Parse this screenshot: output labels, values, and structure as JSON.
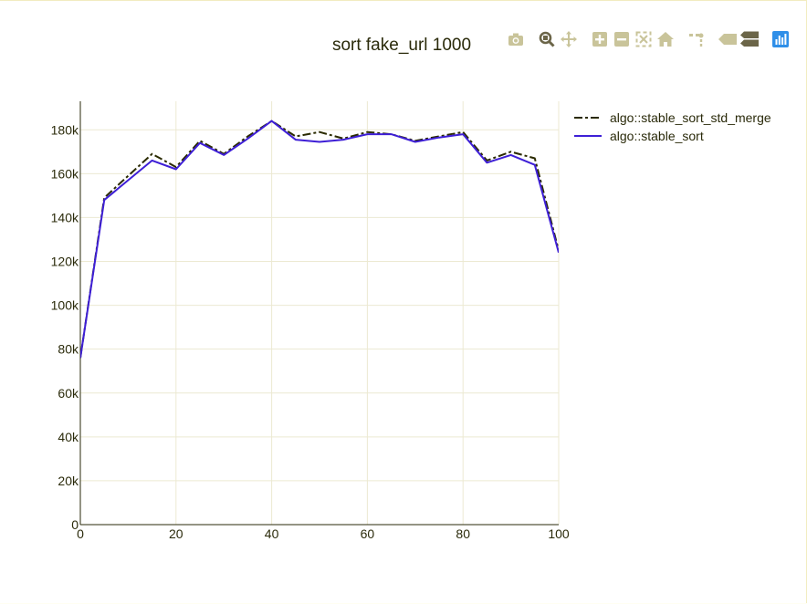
{
  "toolbar": {
    "buttons": [
      {
        "name": "camera-icon",
        "label": "Download plot as png"
      },
      {
        "name": "zoom-icon",
        "label": "Zoom"
      },
      {
        "name": "pan-icon",
        "label": "Pan"
      },
      {
        "name": "zoom-in-icon",
        "label": "Zoom in"
      },
      {
        "name": "zoom-out-icon",
        "label": "Zoom out"
      },
      {
        "name": "autoscale-icon",
        "label": "Autoscale"
      },
      {
        "name": "home-icon",
        "label": "Reset axes"
      },
      {
        "name": "spike-lines-icon",
        "label": "Toggle spike lines"
      },
      {
        "name": "hover-closest-icon",
        "label": "Show closest data on hover"
      },
      {
        "name": "hover-compare-icon",
        "label": "Compare data on hover"
      },
      {
        "name": "plotly-logo-icon",
        "label": "Produced with Plotly"
      }
    ],
    "colors": {
      "icon": "#c9c49a",
      "icon_active": "#6b6548",
      "logo": "#2f8fe8"
    }
  },
  "chart_data": {
    "type": "line",
    "title": "sort fake_url 1000",
    "xlabel": "",
    "ylabel": "",
    "xlim": [
      0,
      100
    ],
    "ylim": [
      0,
      193000
    ],
    "x_ticks": [
      0,
      20,
      40,
      60,
      80,
      100
    ],
    "x_tick_labels": [
      "0",
      "20",
      "40",
      "60",
      "80",
      "100"
    ],
    "y_ticks": [
      0,
      20000,
      40000,
      60000,
      80000,
      100000,
      120000,
      140000,
      160000,
      180000
    ],
    "y_tick_labels": [
      "0",
      "20k",
      "40k",
      "60k",
      "80k",
      "100k",
      "120k",
      "140k",
      "160k",
      "180k"
    ],
    "grid": true,
    "legend_position": "top-right",
    "x": [
      0,
      5,
      10,
      15,
      20,
      25,
      30,
      35,
      40,
      45,
      50,
      55,
      60,
      65,
      70,
      75,
      80,
      85,
      90,
      95,
      100
    ],
    "series": [
      {
        "name": "algo::stable_sort_std_merge",
        "color": "#2a2a00",
        "dash": "dashdot",
        "values": [
          76000,
          149000,
          159000,
          169000,
          163000,
          175000,
          169000,
          177000,
          184000,
          177000,
          179000,
          176000,
          179000,
          178000,
          175000,
          177000,
          179000,
          166000,
          170000,
          167000,
          125000
        ]
      },
      {
        "name": "algo::stable_sort",
        "color": "#3e1fd6",
        "dash": "solid",
        "values": [
          76000,
          148000,
          157000,
          166000,
          162000,
          174000,
          168500,
          176000,
          184000,
          175500,
          174500,
          175500,
          178000,
          178000,
          174500,
          176500,
          178000,
          165000,
          168500,
          164000,
          124000
        ]
      }
    ]
  }
}
